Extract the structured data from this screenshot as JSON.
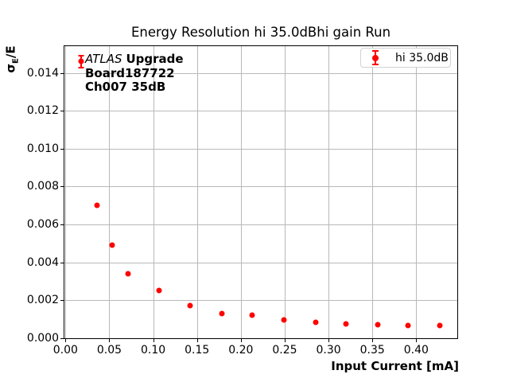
{
  "title": "Energy Resolution hi 35.0dBhi gain Run",
  "annotation": {
    "experiment": "ATLAS",
    "program": "Upgrade",
    "board": "Board187722",
    "channel": "Ch007 35dB"
  },
  "legend": {
    "label": "hi 35.0dB"
  },
  "ylabel_parts": {
    "sigma": "σ",
    "sub": "E",
    "rest": "/E"
  },
  "colors": {
    "series": "#ff0000",
    "grid": "#b9b9b9",
    "spine": "#000000",
    "legend_border": "#d2d2d2"
  },
  "chart_data": {
    "type": "scatter",
    "title": "Energy Resolution hi 35.0dBhi gain Run",
    "xlabel": "Input Current [mA]",
    "ylabel": "σ_E/E",
    "grid": true,
    "legend_position": "upper right",
    "xlim": [
      -0.0021,
      0.4478
    ],
    "ylim": [
      -5e-05,
      0.01545
    ],
    "xticks": [
      0,
      0.05,
      0.1,
      0.15,
      0.2,
      0.25,
      0.3,
      0.35,
      0.4
    ],
    "xtick_labels": [
      "0.00",
      "0.05",
      "0.10",
      "0.15",
      "0.20",
      "0.25",
      "0.30",
      "0.35",
      "0.40"
    ],
    "yticks": [
      0,
      0.002,
      0.004,
      0.006,
      0.008,
      0.01,
      0.012,
      0.014
    ],
    "ytick_labels": [
      "0.000",
      "0.002",
      "0.004",
      "0.006",
      "0.008",
      "0.010",
      "0.012",
      "0.014"
    ],
    "series": [
      {
        "name": "hi 35.0dB",
        "color": "#ff0000",
        "x": [
          0.018,
          0.036,
          0.053,
          0.071,
          0.107,
          0.142,
          0.178,
          0.213,
          0.249,
          0.285,
          0.32,
          0.356,
          0.391,
          0.427
        ],
        "y": [
          0.0146,
          0.007,
          0.0049,
          0.0034,
          0.0025,
          0.0017,
          0.0013,
          0.0012,
          0.00095,
          0.00085,
          0.00073,
          0.00069,
          0.00066,
          0.00065
        ],
        "yerr": [
          0.00032,
          0,
          0,
          0,
          0,
          0,
          0,
          0,
          0,
          0,
          0,
          0,
          0,
          0
        ]
      }
    ]
  }
}
